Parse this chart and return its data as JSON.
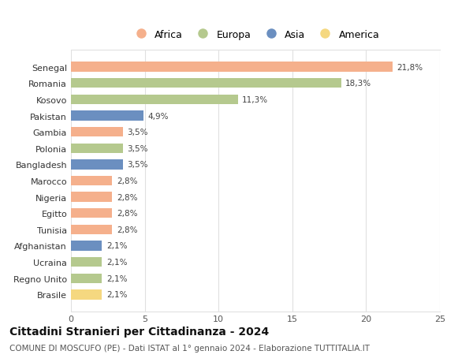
{
  "countries": [
    "Brasile",
    "Regno Unito",
    "Ucraina",
    "Afghanistan",
    "Tunisia",
    "Egitto",
    "Nigeria",
    "Marocco",
    "Bangladesh",
    "Polonia",
    "Gambia",
    "Pakistan",
    "Kosovo",
    "Romania",
    "Senegal"
  ],
  "values": [
    2.1,
    2.1,
    2.1,
    2.1,
    2.8,
    2.8,
    2.8,
    2.8,
    3.5,
    3.5,
    3.5,
    4.9,
    11.3,
    18.3,
    21.8
  ],
  "continents": [
    "America",
    "Europa",
    "Europa",
    "Asia",
    "Africa",
    "Africa",
    "Africa",
    "Africa",
    "Asia",
    "Europa",
    "Africa",
    "Asia",
    "Europa",
    "Europa",
    "Africa"
  ],
  "labels": [
    "2,1%",
    "2,1%",
    "2,1%",
    "2,1%",
    "2,8%",
    "2,8%",
    "2,8%",
    "2,8%",
    "3,5%",
    "3,5%",
    "3,5%",
    "4,9%",
    "11,3%",
    "18,3%",
    "21,8%"
  ],
  "continent_colors": {
    "Africa": "#F5B08C",
    "Europa": "#B5C98E",
    "Asia": "#6B8FC0",
    "America": "#F5D880"
  },
  "legend_order": [
    "Africa",
    "Europa",
    "Asia",
    "America"
  ],
  "title": "Cittadini Stranieri per Cittadinanza - 2024",
  "subtitle": "COMUNE DI MOSCUFO (PE) - Dati ISTAT al 1° gennaio 2024 - Elaborazione TUTTITALIA.IT",
  "xlim": [
    0,
    25
  ],
  "xticks": [
    0,
    5,
    10,
    15,
    20,
    25
  ],
  "background_color": "#ffffff",
  "grid_color": "#e0e0e0",
  "bar_height": 0.6,
  "label_fontsize": 7.5,
  "title_fontsize": 10,
  "subtitle_fontsize": 7.5,
  "tick_fontsize": 8,
  "legend_fontsize": 9
}
